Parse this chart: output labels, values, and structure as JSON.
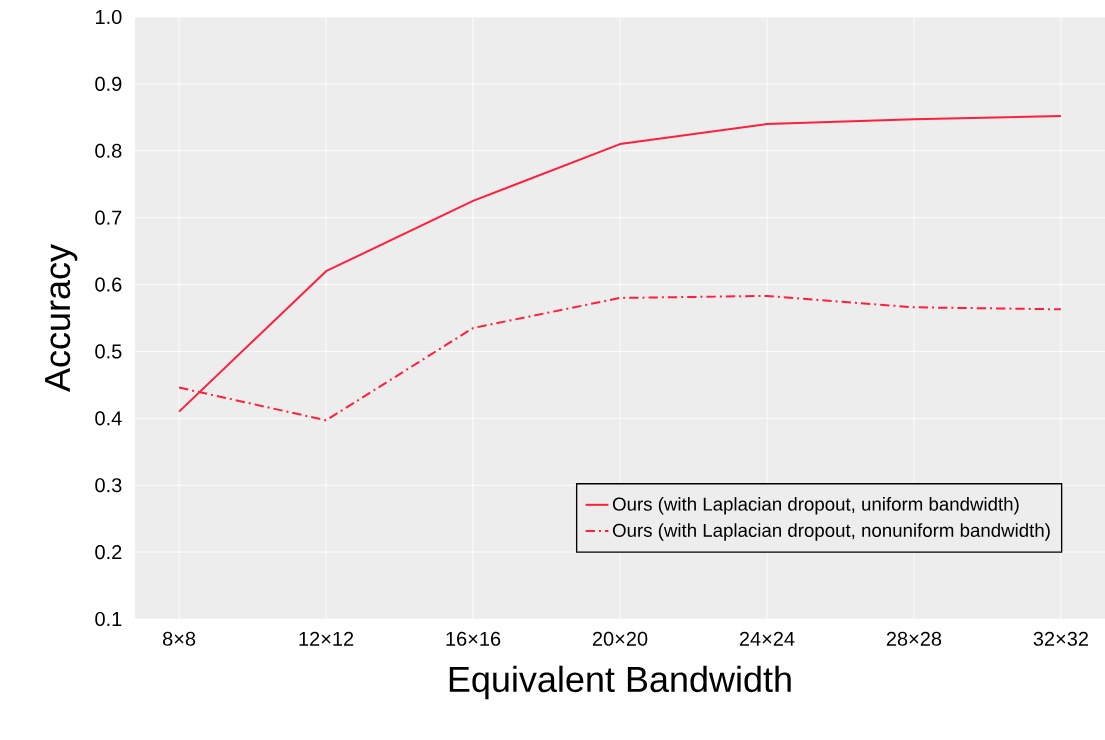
{
  "chart_data": {
    "type": "line",
    "xlabel": "Equivalent Bandwidth",
    "ylabel": "Accuracy",
    "categories": [
      "8×8",
      "12×12",
      "16×16",
      "20×20",
      "24×24",
      "28×28",
      "32×32"
    ],
    "series": [
      {
        "name": "Ours (with Laplacian dropout, uniform bandwidth)",
        "color": "#ff1f3d",
        "line_style": "solid",
        "values": [
          0.41,
          0.62,
          0.725,
          0.81,
          0.84,
          0.847,
          0.852
        ]
      },
      {
        "name": "Ours (with Laplacian dropout, nonuniform bandwidth)",
        "color": "#ff1f3d",
        "line_style": "dashdot",
        "values": [
          0.446,
          0.397,
          0.535,
          0.58,
          0.583,
          0.566,
          0.563
        ]
      }
    ],
    "ylim": [
      0.1,
      1.0
    ],
    "yticks": [
      0.1,
      0.2,
      0.3,
      0.4,
      0.5,
      0.6,
      0.7,
      0.8,
      0.9,
      {
        "value": 1.0,
        "label": "1.0"
      }
    ],
    "grid": true,
    "legend": "bottom right",
    "marker": "none"
  }
}
